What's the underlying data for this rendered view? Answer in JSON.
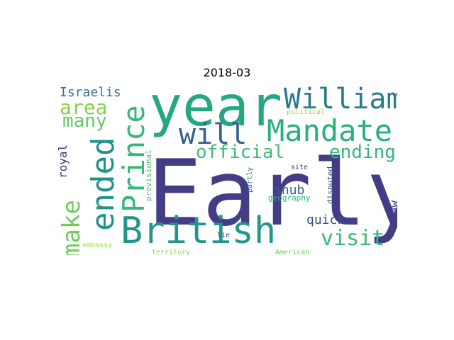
{
  "title": "2018-03",
  "words": [
    {
      "text": "Early",
      "color": "#423d85"
    },
    {
      "text": "year",
      "color": "#26a784"
    },
    {
      "text": "British",
      "color": "#23968b"
    },
    {
      "text": "William",
      "color": "#2d7a8e"
    },
    {
      "text": "Mandate",
      "color": "#2aaf7f"
    },
    {
      "text": "Prince",
      "color": "#35b779"
    },
    {
      "text": "ended",
      "color": "#21918c"
    },
    {
      "text": "will",
      "color": "#355f8d"
    },
    {
      "text": "make",
      "color": "#6ece58"
    },
    {
      "text": "official",
      "color": "#3dbc74"
    },
    {
      "text": "ending",
      "color": "#33b67a"
    },
    {
      "text": "area",
      "color": "#84d44b"
    },
    {
      "text": "many",
      "color": "#63cb5f"
    },
    {
      "text": "visit",
      "color": "#3aba76"
    },
    {
      "text": "Israelis",
      "color": "#3b6f8e"
    },
    {
      "text": "royal",
      "color": "#463480"
    },
    {
      "text": "snub",
      "color": "#355e8d"
    },
    {
      "text": "quick",
      "color": "#3e4a89"
    },
    {
      "text": "saw",
      "color": "#424086"
    },
    {
      "text": "provisional",
      "color": "#46c06f"
    },
    {
      "text": "political",
      "color": "#9dd93b"
    },
    {
      "text": "site",
      "color": "#46337f"
    },
    {
      "text": "partly",
      "color": "#2e6f8e"
    },
    {
      "text": "geography",
      "color": "#2fb47c"
    },
    {
      "text": "disputed",
      "color": "#3e4989"
    },
    {
      "text": "lie",
      "color": "#414287"
    },
    {
      "text": "embassy",
      "color": "#9bd93c"
    },
    {
      "text": "territory",
      "color": "#8bd646"
    },
    {
      "text": "American",
      "color": "#6ccd5a"
    }
  ]
}
